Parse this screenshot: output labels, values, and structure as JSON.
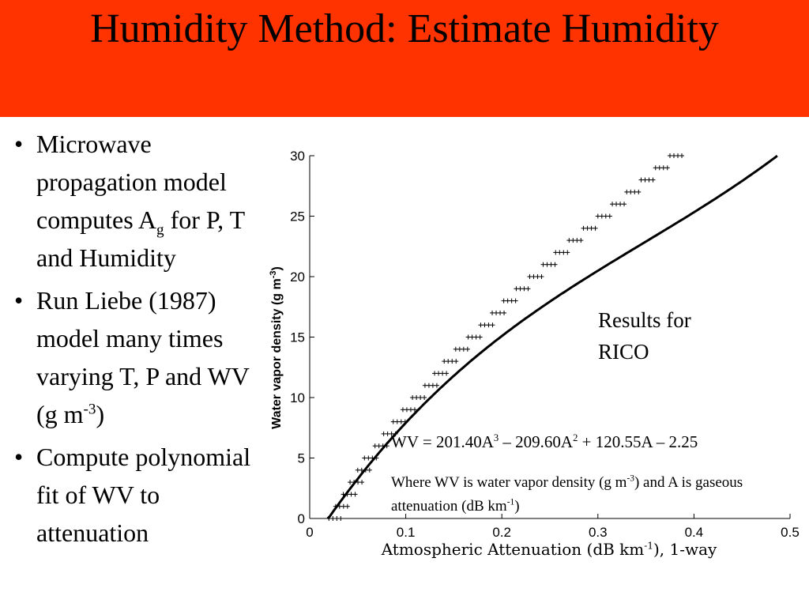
{
  "slide": {
    "title": "Humidity Method: Estimate Humidity",
    "bullets": [
      {
        "pre": "Microwave propagation model computes A",
        "sub": "g",
        "post": " for P, T and Humidity"
      },
      {
        "pre": "Run Liebe (1987) model many times varying T, P and WV (g m",
        "sup": "-3",
        "post": ")"
      },
      {
        "pre": "Compute polynomial fit of WV to attenuation"
      }
    ]
  },
  "annotations": {
    "results": "Results for RICO",
    "equation": {
      "p1": "WV = 201.40A",
      "s1": "3",
      "p2": " – 209.60A",
      "s2": "2",
      "p3": " + 120.55A – 2.25"
    },
    "where": {
      "p1": "Where WV is water vapor density (g m",
      "s1": "-3",
      "p2": ") and A is gaseous attenuation (dB km",
      "s2": "-1",
      "p3": ")"
    }
  },
  "chart_data": {
    "type": "scatter",
    "xlabel": {
      "pre": "Atmospheric Attenuation (dB km",
      "sup": "-1",
      "post": "), 1-way"
    },
    "ylabel": {
      "pre": "Water vapor density (g m",
      "sup": "-3",
      "post": ")"
    },
    "xlim": [
      0,
      0.5
    ],
    "ylim": [
      0,
      30
    ],
    "x_ticks": [
      0,
      0.1,
      0.2,
      0.3,
      0.4,
      0.5
    ],
    "x_tick_labels": [
      "0",
      "0.1",
      "0.2",
      "0.3",
      "0.4",
      "0.5"
    ],
    "y_ticks": [
      0,
      5,
      10,
      15,
      20,
      25,
      30
    ],
    "y_tick_labels": [
      "0",
      "5",
      "10",
      "15",
      "20",
      "25",
      "30"
    ],
    "grid": false,
    "fit_coefficients": [
      201.4,
      -209.6,
      120.55,
      -2.25
    ],
    "series": [
      {
        "points": [
          [
            0.02,
            0
          ],
          [
            0.027,
            1
          ],
          [
            0.035,
            2
          ],
          [
            0.042,
            3
          ],
          [
            0.05,
            4
          ],
          [
            0.057,
            5
          ],
          [
            0.068,
            6
          ],
          [
            0.077,
            7
          ],
          [
            0.087,
            8
          ],
          [
            0.097,
            9
          ],
          [
            0.107,
            10
          ],
          [
            0.12,
            11
          ],
          [
            0.13,
            12
          ],
          [
            0.14,
            13
          ],
          [
            0.152,
            14
          ],
          [
            0.165,
            15
          ],
          [
            0.178,
            16
          ],
          [
            0.19,
            17
          ],
          [
            0.202,
            18
          ],
          [
            0.215,
            19
          ],
          [
            0.229,
            20
          ],
          [
            0.243,
            21
          ],
          [
            0.256,
            22
          ],
          [
            0.27,
            23
          ],
          [
            0.285,
            24
          ],
          [
            0.3,
            25
          ],
          [
            0.315,
            26
          ],
          [
            0.33,
            27
          ],
          [
            0.345,
            28
          ],
          [
            0.36,
            29
          ],
          [
            0.375,
            30
          ]
        ]
      }
    ]
  }
}
